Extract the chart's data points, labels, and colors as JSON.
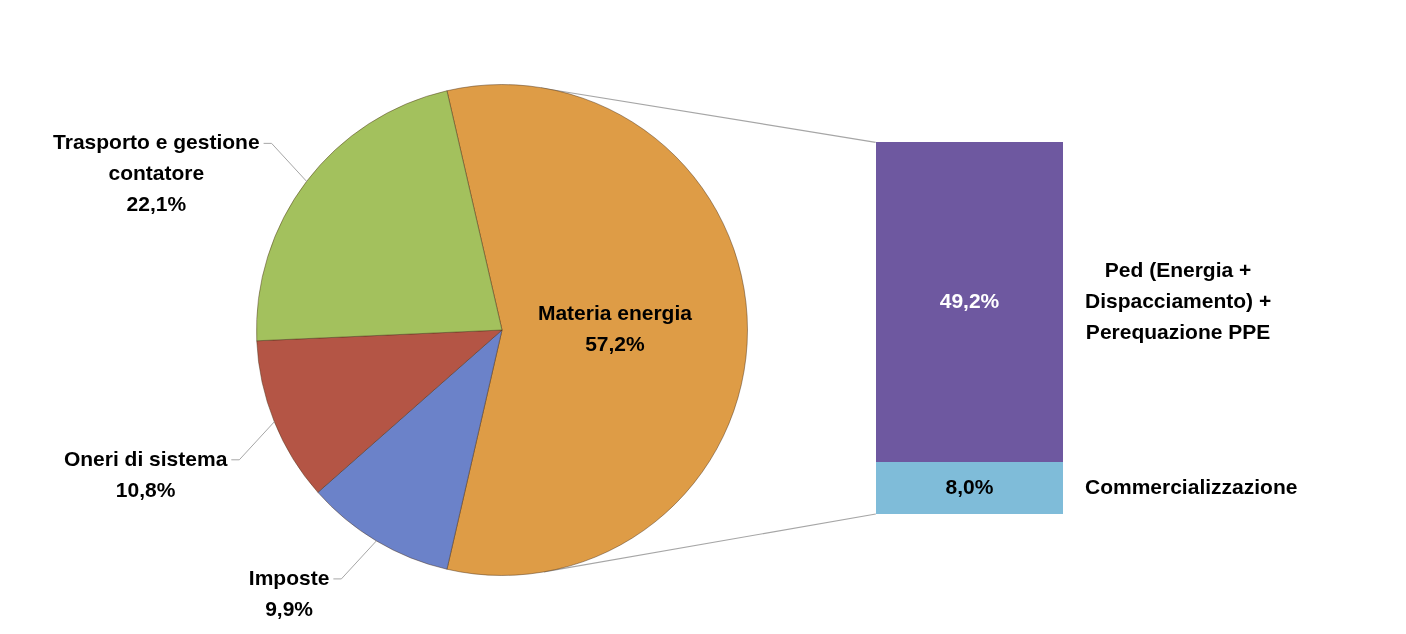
{
  "chart_data": [
    {
      "type": "pie",
      "categories": [
        "Materia energia",
        "Imposte",
        "Oneri di sistema",
        "Trasporto e gestione contatore"
      ],
      "values": [
        57.2,
        9.9,
        10.8,
        22.1
      ],
      "colors": [
        "#de9c46",
        "#6b82c9",
        "#b45545",
        "#a3c15d"
      ],
      "value_labels": [
        "57,2%",
        "9,9%",
        "10,8%",
        "22,1%"
      ]
    },
    {
      "type": "bar",
      "stacked": true,
      "categories": [
        null
      ],
      "series": [
        {
          "name": "Commercializzazione",
          "color": "#7fbcd9",
          "values": [
            8.0
          ],
          "value_labels": [
            "8,0%"
          ]
        },
        {
          "name": "Ped (Energia + Dispacciamento) + Perequazione PPE",
          "color": "#6e58a0",
          "values": [
            49.2
          ],
          "value_labels": [
            "49,2%"
          ]
        }
      ],
      "tick_labels": false
    }
  ]
}
